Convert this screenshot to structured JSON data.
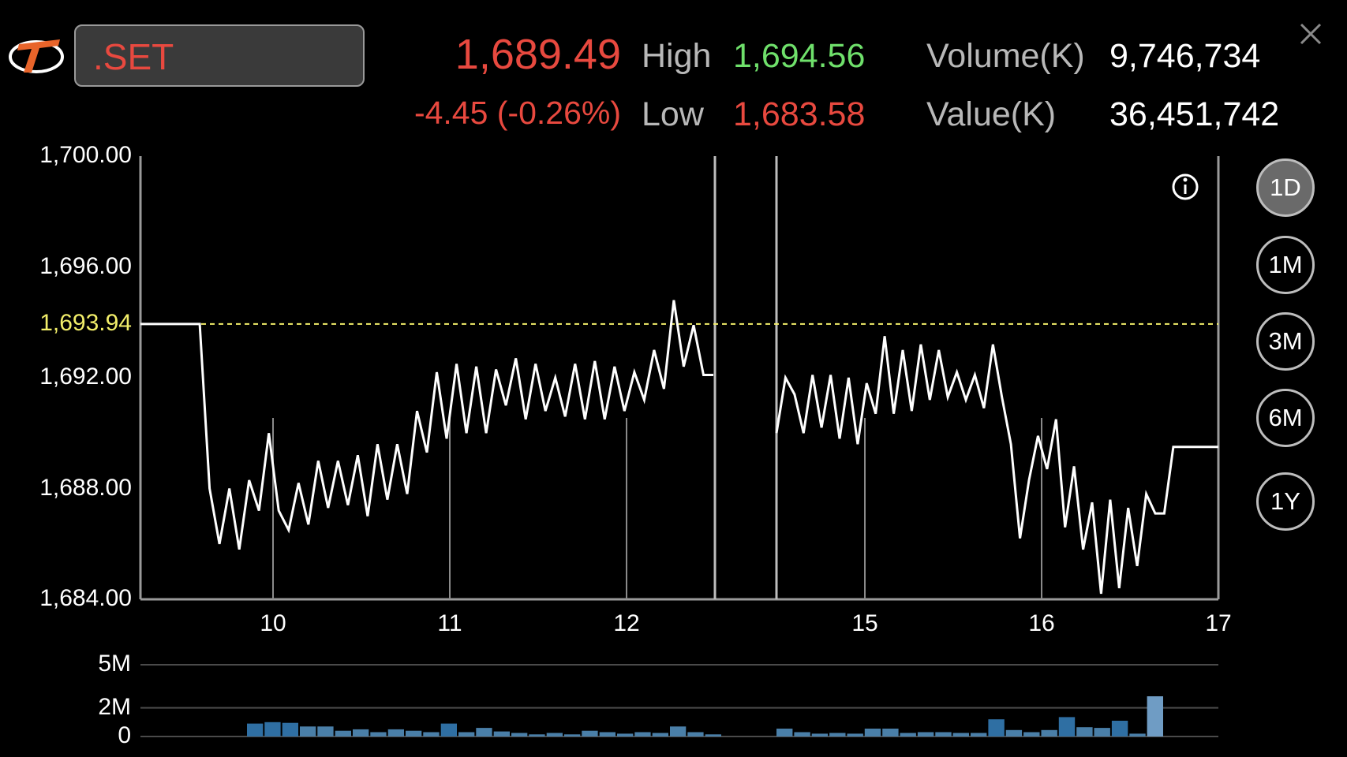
{
  "symbol": {
    "value": ".SET"
  },
  "quote": {
    "last": "1,689.49",
    "change": "-4.45 (-0.26%)",
    "high_label": "High",
    "high": "1,694.56",
    "low_label": "Low",
    "low": "1,683.58",
    "volume_label": "Volume(K)",
    "volume": "9,746,734",
    "value_label": "Value(K)",
    "value": "36,451,742"
  },
  "ranges": [
    "1D",
    "1M",
    "3M",
    "6M",
    "1Y"
  ],
  "active_range": "1D",
  "icons": {
    "close": "close-icon",
    "info": "info-icon",
    "logo": "app-logo-icon"
  },
  "colors": {
    "up": "#6fe06b",
    "down": "#e8493f",
    "reference": "#f2ee6a",
    "volume_bar": "#4a7fa8",
    "volume_bar_dark": "#2f6fa3"
  },
  "chart_data": {
    "type": "line",
    "price_ticks": [
      "1,700.00",
      "1,696.00",
      "1,692.00",
      "1,688.00",
      "1,684.00"
    ],
    "reference_label": "1,693.94",
    "reference_value": 1693.94,
    "ylim": [
      1684,
      1700
    ],
    "x_tick_labels": [
      "10",
      "11",
      "12",
      "15",
      "16",
      "17"
    ],
    "segments": [
      {
        "values": [
          1693.94,
          1693.94,
          1693.94,
          1693.94,
          1693.94,
          1693.94,
          1693.94,
          1688,
          1686,
          1688,
          1685.8,
          1688.3,
          1687.2,
          1690,
          1687.2,
          1686.5,
          1688.2,
          1686.7,
          1689,
          1687.3,
          1689,
          1687.4,
          1689.2,
          1687,
          1689.6,
          1687.6,
          1689.6,
          1687.8,
          1690.8,
          1689.3,
          1692.2,
          1689.8,
          1692.5,
          1690,
          1692.4,
          1690,
          1692.3,
          1691,
          1692.7,
          1690.5,
          1692.5,
          1690.8,
          1692,
          1690.6,
          1692.5,
          1690.5,
          1692.6,
          1690.5,
          1692.4,
          1690.8,
          1692.2,
          1691.2,
          1693,
          1691.6,
          1694.8,
          1692.4,
          1693.9,
          1692.1,
          1692.1
        ]
      },
      {
        "values": [
          1690,
          1692,
          1691.4,
          1690,
          1692.1,
          1690.2,
          1692.1,
          1689.8,
          1692,
          1689.6,
          1691.8,
          1690.7,
          1693.5,
          1690.7,
          1693,
          1690.8,
          1693.2,
          1691.2,
          1693,
          1691.3,
          1692.2,
          1691.2,
          1692.1,
          1690.9,
          1693.2,
          1691.3,
          1689.6,
          1686.2,
          1688.3,
          1689.9,
          1688.7,
          1690.5,
          1686.6,
          1688.8,
          1685.8,
          1687.5,
          1684.2,
          1687.6,
          1684.4,
          1687.3,
          1685.2,
          1687.8,
          1687.1,
          1687.1,
          1689.5,
          1689.5,
          1689.5,
          1689.5,
          1689.5,
          1689.5
        ]
      }
    ],
    "volume_axis": [
      "5M",
      "2M",
      "0"
    ],
    "volume_max": 5000000,
    "volume": [
      [
        900000,
        1000000,
        950000,
        700000,
        700000,
        400000,
        500000,
        300000,
        500000,
        400000,
        300000,
        900000,
        300000,
        600000,
        350000,
        250000,
        150000,
        250000,
        150000,
        400000,
        300000,
        200000,
        300000,
        250000,
        700000,
        300000,
        150000
      ],
      [
        550000,
        300000,
        200000,
        250000,
        200000,
        550000,
        550000,
        250000,
        300000,
        300000,
        250000,
        250000,
        1200000,
        450000,
        300000,
        450000,
        1350000,
        650000,
        600000,
        1100000,
        200000,
        2800000
      ]
    ]
  }
}
